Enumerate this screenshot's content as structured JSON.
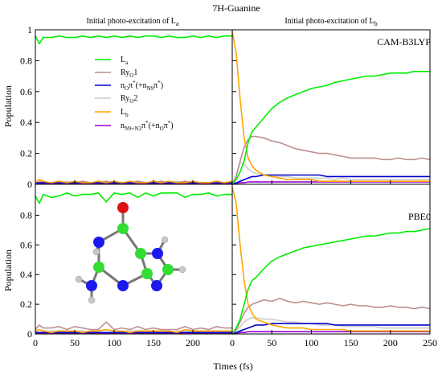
{
  "figure": {
    "title": "7H-Guanine",
    "column_titles": [
      {
        "text": "Initial photo-excitation of L",
        "sub": "a"
      },
      {
        "text": "Initial photo-excitation of L",
        "sub": "b"
      }
    ],
    "row_labels": [
      "CAM-B3LYP",
      "PBE0"
    ],
    "ylabel": "Population",
    "xlabel": "Times (fs)"
  },
  "legend": [
    {
      "label": "L",
      "sub": "a",
      "sup": "",
      "rest": "",
      "color": "#00ee00"
    },
    {
      "label": "Ry",
      "sub": "O",
      "sup": "",
      "rest": "1",
      "color": "#bc8f8f"
    },
    {
      "label": "n",
      "sub": "O",
      "sup": "*",
      "rest": "π",
      "tail": "(+n",
      "tail_sub": "N9",
      "tail_rest": "π",
      "tail_sup": "*",
      "tail_end": ")",
      "color": "#0000cc"
    },
    {
      "label": "Ry",
      "sub": "O",
      "sup": "",
      "rest": "2",
      "color": "#cccccc"
    },
    {
      "label": "L",
      "sub": "b",
      "sup": "",
      "rest": "",
      "color": "#ffa500"
    },
    {
      "label": "n",
      "sub": "N9+N3",
      "sup": "*",
      "rest": "π",
      "tail": "(+n",
      "tail_sub": "O",
      "tail_rest": "π",
      "tail_sup": "*",
      "tail_end": ")",
      "color": "#9400d3"
    }
  ],
  "colors": {
    "La": "#00ee00",
    "RyO1": "#bc8f8f",
    "nOpi": "#0000cc",
    "RyO2": "#cccccc",
    "Lb": "#ffa500",
    "nNpi": "#9400d3",
    "atom_C": "#33dd33",
    "atom_N": "#1a1aee",
    "atom_O": "#dd1111",
    "atom_H": "#c8c8c8",
    "bond": "#777777"
  },
  "chart_data": [
    {
      "type": "line",
      "panel": "top-left",
      "method": "CAM-B3LYP",
      "initial_state": "La",
      "xlim": [
        0,
        250
      ],
      "ylim": [
        0,
        1
      ],
      "x_ticks": [
        0,
        50,
        100,
        150,
        200
      ],
      "y_ticks": [
        0,
        0.2,
        0.4,
        0.6,
        0.8,
        1
      ],
      "x": [
        0,
        5,
        10,
        20,
        30,
        40,
        50,
        60,
        70,
        80,
        90,
        100,
        110,
        120,
        130,
        140,
        150,
        160,
        170,
        180,
        190,
        200,
        210,
        220,
        230,
        240,
        250
      ],
      "series": [
        {
          "key": "La",
          "values": [
            0.96,
            0.91,
            0.95,
            0.95,
            0.96,
            0.95,
            0.95,
            0.96,
            0.95,
            0.96,
            0.95,
            0.96,
            0.95,
            0.96,
            0.95,
            0.96,
            0.96,
            0.95,
            0.96,
            0.95,
            0.95,
            0.96,
            0.95,
            0.96,
            0.95,
            0.96,
            0.96
          ]
        },
        {
          "key": "RyO1",
          "values": [
            0.01,
            0.03,
            0.01,
            0.01,
            0.02,
            0.01,
            0.01,
            0.02,
            0.01,
            0.01,
            0.02,
            0.01,
            0.01,
            0.01,
            0.02,
            0.01,
            0.01,
            0.02,
            0.01,
            0.01,
            0.02,
            0.01,
            0.01,
            0.01,
            0.02,
            0.01,
            0.01
          ]
        },
        {
          "key": "nOpi",
          "values": [
            0.01,
            0.01,
            0.01,
            0.01,
            0.01,
            0.01,
            0.01,
            0.01,
            0.01,
            0.01,
            0.01,
            0.01,
            0.01,
            0.01,
            0.01,
            0.01,
            0.01,
            0.01,
            0.01,
            0.01,
            0.01,
            0.01,
            0.01,
            0.01,
            0.01,
            0.01,
            0.01
          ]
        },
        {
          "key": "RyO2",
          "values": [
            0.01,
            0.02,
            0.01,
            0.01,
            0.01,
            0.02,
            0.01,
            0.01,
            0.01,
            0.02,
            0.01,
            0.01,
            0.01,
            0.01,
            0.02,
            0.01,
            0.01,
            0.01,
            0.01,
            0.02,
            0.01,
            0.01,
            0.01,
            0.01,
            0.01,
            0.01,
            0.01
          ]
        },
        {
          "key": "Lb",
          "values": [
            0.01,
            0.03,
            0.02,
            0.01,
            0.02,
            0.01,
            0.02,
            0.01,
            0.01,
            0.02,
            0.01,
            0.02,
            0.01,
            0.02,
            0.01,
            0.01,
            0.02,
            0.01,
            0.02,
            0.01,
            0.01,
            0.02,
            0.01,
            0.01,
            0.02,
            0.01,
            0.02
          ]
        },
        {
          "key": "nNpi",
          "values": [
            0.005,
            0.005,
            0.005,
            0.005,
            0.005,
            0.005,
            0.005,
            0.005,
            0.005,
            0.005,
            0.005,
            0.005,
            0.005,
            0.005,
            0.005,
            0.005,
            0.005,
            0.005,
            0.005,
            0.005,
            0.005,
            0.005,
            0.005,
            0.005,
            0.005,
            0.005,
            0.005
          ]
        }
      ]
    },
    {
      "type": "line",
      "panel": "top-right",
      "method": "CAM-B3LYP",
      "initial_state": "Lb",
      "xlim": [
        0,
        250
      ],
      "ylim": [
        0,
        1
      ],
      "x_ticks": [
        0,
        50,
        100,
        150,
        200,
        250
      ],
      "y_ticks": [
        0,
        0.2,
        0.4,
        0.6,
        0.8,
        1
      ],
      "x": [
        0,
        5,
        10,
        15,
        20,
        25,
        30,
        40,
        50,
        60,
        70,
        80,
        90,
        100,
        110,
        120,
        130,
        140,
        150,
        160,
        170,
        180,
        190,
        200,
        210,
        220,
        230,
        240,
        250
      ],
      "series": [
        {
          "key": "La",
          "values": [
            0.0,
            0.03,
            0.08,
            0.15,
            0.27,
            0.34,
            0.37,
            0.43,
            0.49,
            0.53,
            0.56,
            0.58,
            0.6,
            0.62,
            0.63,
            0.64,
            0.66,
            0.67,
            0.68,
            0.69,
            0.7,
            0.7,
            0.71,
            0.72,
            0.72,
            0.72,
            0.73,
            0.73,
            0.73
          ]
        },
        {
          "key": "RyO1",
          "values": [
            0.0,
            0.05,
            0.15,
            0.24,
            0.29,
            0.31,
            0.31,
            0.3,
            0.28,
            0.27,
            0.25,
            0.23,
            0.22,
            0.21,
            0.2,
            0.2,
            0.19,
            0.18,
            0.17,
            0.17,
            0.17,
            0.17,
            0.16,
            0.16,
            0.17,
            0.16,
            0.16,
            0.17,
            0.16
          ]
        },
        {
          "key": "nOpi",
          "values": [
            0.0,
            0.01,
            0.02,
            0.03,
            0.04,
            0.05,
            0.05,
            0.06,
            0.06,
            0.06,
            0.06,
            0.06,
            0.06,
            0.06,
            0.06,
            0.05,
            0.05,
            0.05,
            0.05,
            0.05,
            0.05,
            0.05,
            0.05,
            0.05,
            0.05,
            0.05,
            0.05,
            0.05,
            0.05
          ]
        },
        {
          "key": "RyO2",
          "values": [
            0.0,
            0.06,
            0.14,
            0.13,
            0.1,
            0.08,
            0.07,
            0.06,
            0.05,
            0.05,
            0.05,
            0.04,
            0.04,
            0.04,
            0.04,
            0.04,
            0.03,
            0.04,
            0.03,
            0.03,
            0.03,
            0.03,
            0.03,
            0.03,
            0.03,
            0.03,
            0.03,
            0.03,
            0.03
          ]
        },
        {
          "key": "Lb",
          "values": [
            0.99,
            0.85,
            0.55,
            0.3,
            0.17,
            0.12,
            0.09,
            0.06,
            0.05,
            0.04,
            0.03,
            0.03,
            0.03,
            0.03,
            0.02,
            0.02,
            0.02,
            0.02,
            0.02,
            0.02,
            0.02,
            0.02,
            0.02,
            0.02,
            0.02,
            0.02,
            0.02,
            0.02,
            0.02
          ]
        },
        {
          "key": "nNpi",
          "values": [
            0.0,
            0.005,
            0.01,
            0.01,
            0.015,
            0.015,
            0.015,
            0.015,
            0.015,
            0.015,
            0.015,
            0.015,
            0.015,
            0.015,
            0.015,
            0.015,
            0.015,
            0.015,
            0.015,
            0.015,
            0.015,
            0.015,
            0.015,
            0.015,
            0.015,
            0.015,
            0.015,
            0.015,
            0.015
          ]
        }
      ]
    },
    {
      "type": "line",
      "panel": "bottom-left",
      "method": "PBE0",
      "initial_state": "La",
      "xlim": [
        0,
        250
      ],
      "ylim": [
        0,
        1
      ],
      "x_ticks": [
        0,
        50,
        100,
        150,
        200
      ],
      "y_ticks": [
        0,
        0.2,
        0.4,
        0.6,
        0.8
      ],
      "x": [
        0,
        5,
        10,
        20,
        30,
        40,
        50,
        60,
        70,
        80,
        90,
        100,
        110,
        120,
        130,
        140,
        150,
        160,
        170,
        180,
        190,
        200,
        210,
        220,
        230,
        240,
        250
      ],
      "series": [
        {
          "key": "La",
          "values": [
            0.93,
            0.88,
            0.94,
            0.92,
            0.93,
            0.95,
            0.93,
            0.94,
            0.94,
            0.95,
            0.89,
            0.95,
            0.94,
            0.95,
            0.92,
            0.95,
            0.93,
            0.95,
            0.95,
            0.95,
            0.92,
            0.94,
            0.94,
            0.95,
            0.93,
            0.94,
            0.94
          ]
        },
        {
          "key": "RyO1",
          "values": [
            0.03,
            0.06,
            0.04,
            0.04,
            0.05,
            0.03,
            0.05,
            0.04,
            0.03,
            0.03,
            0.08,
            0.03,
            0.04,
            0.03,
            0.05,
            0.03,
            0.04,
            0.03,
            0.03,
            0.03,
            0.05,
            0.03,
            0.04,
            0.03,
            0.05,
            0.04,
            0.04
          ]
        },
        {
          "key": "nOpi",
          "values": [
            0.01,
            0.01,
            0.01,
            0.01,
            0.01,
            0.01,
            0.01,
            0.01,
            0.01,
            0.01,
            0.01,
            0.01,
            0.01,
            0.01,
            0.01,
            0.01,
            0.01,
            0.01,
            0.01,
            0.01,
            0.01,
            0.01,
            0.01,
            0.01,
            0.01,
            0.01,
            0.01
          ]
        },
        {
          "key": "RyO2",
          "values": [
            0.01,
            0.03,
            0.02,
            0.02,
            0.02,
            0.01,
            0.02,
            0.02,
            0.01,
            0.02,
            0.03,
            0.02,
            0.02,
            0.02,
            0.02,
            0.01,
            0.02,
            0.02,
            0.01,
            0.02,
            0.02,
            0.01,
            0.02,
            0.02,
            0.02,
            0.02,
            0.02
          ]
        },
        {
          "key": "Lb",
          "values": [
            0.02,
            0.03,
            0.02,
            0.01,
            0.02,
            0.02,
            0.02,
            0.01,
            0.02,
            0.02,
            0.03,
            0.02,
            0.02,
            0.01,
            0.02,
            0.02,
            0.02,
            0.02,
            0.02,
            0.01,
            0.03,
            0.02,
            0.02,
            0.02,
            0.02,
            0.02,
            0.02
          ]
        },
        {
          "key": "nNpi",
          "values": [
            0.005,
            0.005,
            0.005,
            0.005,
            0.005,
            0.005,
            0.005,
            0.005,
            0.005,
            0.005,
            0.005,
            0.005,
            0.005,
            0.005,
            0.005,
            0.005,
            0.005,
            0.005,
            0.005,
            0.005,
            0.005,
            0.005,
            0.005,
            0.005,
            0.005,
            0.005,
            0.005
          ]
        }
      ]
    },
    {
      "type": "line",
      "panel": "bottom-right",
      "method": "PBE0",
      "initial_state": "Lb",
      "xlim": [
        0,
        250
      ],
      "ylim": [
        0,
        1
      ],
      "x_ticks": [
        0,
        50,
        100,
        150,
        200,
        250
      ],
      "y_ticks": [
        0,
        0.2,
        0.4,
        0.6,
        0.8
      ],
      "x": [
        0,
        5,
        10,
        15,
        20,
        25,
        30,
        40,
        50,
        60,
        70,
        80,
        90,
        100,
        110,
        120,
        130,
        140,
        150,
        160,
        170,
        180,
        190,
        200,
        210,
        220,
        230,
        240,
        250
      ],
      "series": [
        {
          "key": "La",
          "values": [
            0.0,
            0.04,
            0.1,
            0.2,
            0.3,
            0.36,
            0.38,
            0.44,
            0.49,
            0.52,
            0.54,
            0.56,
            0.58,
            0.59,
            0.6,
            0.61,
            0.62,
            0.63,
            0.64,
            0.65,
            0.66,
            0.66,
            0.67,
            0.68,
            0.68,
            0.69,
            0.69,
            0.7,
            0.71
          ]
        },
        {
          "key": "RyO1",
          "values": [
            0.0,
            0.03,
            0.08,
            0.14,
            0.18,
            0.2,
            0.21,
            0.23,
            0.22,
            0.24,
            0.22,
            0.21,
            0.22,
            0.21,
            0.2,
            0.21,
            0.2,
            0.19,
            0.2,
            0.19,
            0.19,
            0.18,
            0.18,
            0.19,
            0.18,
            0.18,
            0.17,
            0.18,
            0.17
          ]
        },
        {
          "key": "nOpi",
          "values": [
            0.0,
            0.01,
            0.02,
            0.03,
            0.04,
            0.05,
            0.06,
            0.06,
            0.07,
            0.07,
            0.07,
            0.07,
            0.07,
            0.07,
            0.07,
            0.07,
            0.06,
            0.06,
            0.06,
            0.06,
            0.06,
            0.06,
            0.06,
            0.06,
            0.06,
            0.06,
            0.06,
            0.06,
            0.06
          ]
        },
        {
          "key": "RyO2",
          "values": [
            0.0,
            0.02,
            0.05,
            0.08,
            0.1,
            0.11,
            0.11,
            0.1,
            0.1,
            0.09,
            0.08,
            0.08,
            0.07,
            0.07,
            0.06,
            0.06,
            0.06,
            0.05,
            0.05,
            0.05,
            0.05,
            0.05,
            0.04,
            0.04,
            0.04,
            0.04,
            0.04,
            0.04,
            0.04
          ]
        },
        {
          "key": "Lb",
          "values": [
            0.99,
            0.88,
            0.6,
            0.36,
            0.2,
            0.14,
            0.1,
            0.08,
            0.06,
            0.05,
            0.04,
            0.04,
            0.04,
            0.03,
            0.03,
            0.03,
            0.03,
            0.03,
            0.02,
            0.02,
            0.02,
            0.02,
            0.02,
            0.02,
            0.02,
            0.02,
            0.02,
            0.02,
            0.02
          ]
        },
        {
          "key": "nNpi",
          "values": [
            0.0,
            0.005,
            0.01,
            0.01,
            0.015,
            0.015,
            0.015,
            0.015,
            0.015,
            0.015,
            0.015,
            0.015,
            0.015,
            0.015,
            0.015,
            0.015,
            0.015,
            0.015,
            0.015,
            0.015,
            0.015,
            0.015,
            0.015,
            0.015,
            0.015,
            0.015,
            0.015,
            0.015,
            0.015
          ]
        }
      ]
    }
  ]
}
